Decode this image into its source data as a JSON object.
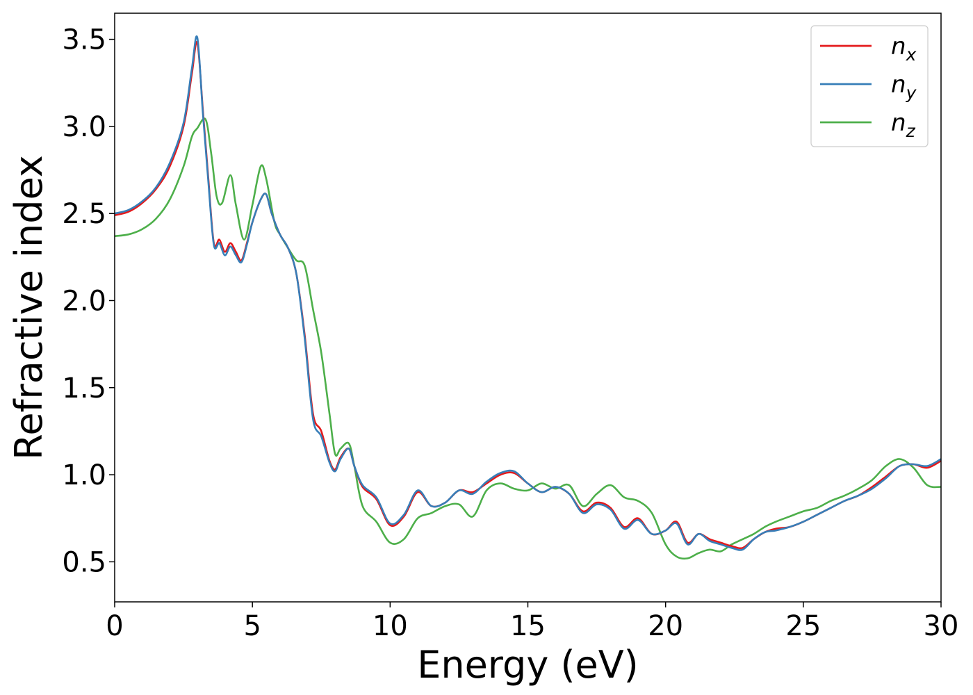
{
  "chart_data": {
    "type": "line",
    "xlabel": "Energy (eV)",
    "ylabel": "Refractive index",
    "xlim": [
      0,
      30
    ],
    "ylim": [
      0.27,
      3.65
    ],
    "xticks": [
      0,
      5,
      10,
      15,
      20,
      25,
      30
    ],
    "yticks": [
      0.5,
      1.0,
      1.5,
      2.0,
      2.5,
      3.0,
      3.5
    ],
    "xtick_labels": [
      "0",
      "5",
      "10",
      "15",
      "20",
      "25",
      "30"
    ],
    "ytick_labels": [
      "0.5",
      "1.0",
      "1.5",
      "2.0",
      "2.5",
      "3.0",
      "3.5"
    ],
    "grid": false,
    "legend_position": "top-right",
    "series": [
      {
        "name": "x",
        "label_base": "n",
        "label_sub": "x",
        "color": "#e41a1c",
        "x": [
          0,
          0.5,
          1.0,
          1.5,
          2.0,
          2.5,
          2.8,
          3.0,
          3.2,
          3.4,
          3.6,
          3.8,
          4.0,
          4.2,
          4.4,
          4.6,
          4.8,
          5.0,
          5.3,
          5.5,
          5.7,
          6.0,
          6.3,
          6.6,
          6.9,
          7.2,
          7.5,
          7.8,
          8.0,
          8.2,
          8.5,
          8.7,
          9.0,
          9.5,
          10.0,
          10.5,
          11.0,
          11.5,
          12.0,
          12.5,
          13.0,
          13.5,
          14.0,
          14.5,
          15.0,
          15.5,
          16.0,
          16.5,
          17.0,
          17.5,
          18.0,
          18.5,
          19.0,
          19.5,
          20.0,
          20.4,
          20.8,
          21.2,
          21.6,
          22.0,
          22.4,
          22.8,
          23.2,
          23.6,
          24.0,
          24.5,
          25.0,
          25.5,
          26.0,
          26.5,
          27.0,
          27.5,
          28.0,
          28.5,
          29.0,
          29.5,
          30.0
        ],
        "y": [
          2.49,
          2.51,
          2.56,
          2.64,
          2.77,
          3.0,
          3.3,
          3.48,
          3.1,
          2.7,
          2.33,
          2.35,
          2.28,
          2.33,
          2.28,
          2.23,
          2.33,
          2.45,
          2.58,
          2.61,
          2.5,
          2.38,
          2.3,
          2.15,
          1.8,
          1.35,
          1.25,
          1.08,
          1.03,
          1.1,
          1.15,
          1.05,
          0.93,
          0.86,
          0.71,
          0.76,
          0.9,
          0.82,
          0.84,
          0.91,
          0.9,
          0.95,
          1.0,
          1.01,
          0.95,
          0.9,
          0.93,
          0.89,
          0.79,
          0.84,
          0.81,
          0.7,
          0.75,
          0.66,
          0.68,
          0.73,
          0.61,
          0.66,
          0.63,
          0.61,
          0.59,
          0.58,
          0.63,
          0.67,
          0.69,
          0.7,
          0.73,
          0.77,
          0.81,
          0.85,
          0.88,
          0.93,
          0.99,
          1.05,
          1.06,
          1.04,
          1.08
        ]
      },
      {
        "name": "y",
        "label_base": "n",
        "label_sub": "y",
        "color": "#377eb8",
        "x": [
          0,
          0.5,
          1.0,
          1.5,
          2.0,
          2.5,
          2.8,
          3.0,
          3.2,
          3.4,
          3.6,
          3.8,
          4.0,
          4.2,
          4.4,
          4.6,
          4.8,
          5.0,
          5.3,
          5.5,
          5.7,
          6.0,
          6.3,
          6.6,
          6.9,
          7.2,
          7.5,
          7.8,
          8.0,
          8.2,
          8.5,
          8.7,
          9.0,
          9.5,
          10.0,
          10.5,
          11.0,
          11.5,
          12.0,
          12.5,
          13.0,
          13.5,
          14.0,
          14.5,
          15.0,
          15.5,
          16.0,
          16.5,
          17.0,
          17.5,
          18.0,
          18.5,
          19.0,
          19.5,
          20.0,
          20.4,
          20.8,
          21.2,
          21.6,
          22.0,
          22.4,
          22.8,
          23.2,
          23.6,
          24.0,
          24.5,
          25.0,
          25.5,
          26.0,
          26.5,
          27.0,
          27.5,
          28.0,
          28.5,
          29.0,
          29.5,
          30.0
        ],
        "y": [
          2.5,
          2.52,
          2.57,
          2.65,
          2.79,
          3.02,
          3.33,
          3.51,
          3.08,
          2.68,
          2.32,
          2.33,
          2.26,
          2.31,
          2.26,
          2.22,
          2.32,
          2.45,
          2.58,
          2.61,
          2.5,
          2.38,
          2.3,
          2.15,
          1.78,
          1.32,
          1.22,
          1.07,
          1.02,
          1.09,
          1.15,
          1.05,
          0.94,
          0.87,
          0.72,
          0.77,
          0.91,
          0.82,
          0.84,
          0.91,
          0.89,
          0.96,
          1.01,
          1.02,
          0.95,
          0.9,
          0.93,
          0.89,
          0.78,
          0.83,
          0.8,
          0.69,
          0.74,
          0.66,
          0.68,
          0.72,
          0.6,
          0.66,
          0.62,
          0.6,
          0.58,
          0.57,
          0.63,
          0.67,
          0.68,
          0.7,
          0.73,
          0.77,
          0.81,
          0.85,
          0.88,
          0.92,
          0.98,
          1.05,
          1.06,
          1.05,
          1.09
        ]
      },
      {
        "name": "z",
        "label_base": "n",
        "label_sub": "z",
        "color": "#4daf4a",
        "x": [
          0,
          0.5,
          1.0,
          1.5,
          2.0,
          2.5,
          2.8,
          3.0,
          3.3,
          3.5,
          3.7,
          3.9,
          4.2,
          4.4,
          4.7,
          5.0,
          5.3,
          5.5,
          5.8,
          6.0,
          6.3,
          6.6,
          6.9,
          7.2,
          7.5,
          7.8,
          8.0,
          8.2,
          8.5,
          8.7,
          9.0,
          9.5,
          10.0,
          10.5,
          11.0,
          11.5,
          12.0,
          12.5,
          13.0,
          13.5,
          14.0,
          14.5,
          15.0,
          15.5,
          16.0,
          16.5,
          17.0,
          17.5,
          18.0,
          18.5,
          19.0,
          19.5,
          20.0,
          20.4,
          20.8,
          21.2,
          21.6,
          22.0,
          22.4,
          22.8,
          23.2,
          23.6,
          24.0,
          24.5,
          25.0,
          25.5,
          26.0,
          26.5,
          27.0,
          27.5,
          28.0,
          28.5,
          29.0,
          29.5,
          30.0
        ],
        "y": [
          2.37,
          2.38,
          2.41,
          2.47,
          2.58,
          2.77,
          2.94,
          2.99,
          3.04,
          2.85,
          2.6,
          2.56,
          2.72,
          2.55,
          2.35,
          2.55,
          2.77,
          2.7,
          2.45,
          2.38,
          2.3,
          2.23,
          2.2,
          1.95,
          1.7,
          1.35,
          1.12,
          1.15,
          1.18,
          1.05,
          0.82,
          0.73,
          0.61,
          0.63,
          0.75,
          0.78,
          0.82,
          0.83,
          0.76,
          0.91,
          0.95,
          0.92,
          0.91,
          0.95,
          0.92,
          0.94,
          0.82,
          0.89,
          0.94,
          0.87,
          0.85,
          0.78,
          0.6,
          0.53,
          0.52,
          0.55,
          0.57,
          0.56,
          0.6,
          0.63,
          0.66,
          0.7,
          0.73,
          0.76,
          0.79,
          0.81,
          0.85,
          0.88,
          0.92,
          0.97,
          1.05,
          1.09,
          1.04,
          0.94,
          0.93
        ]
      }
    ]
  }
}
